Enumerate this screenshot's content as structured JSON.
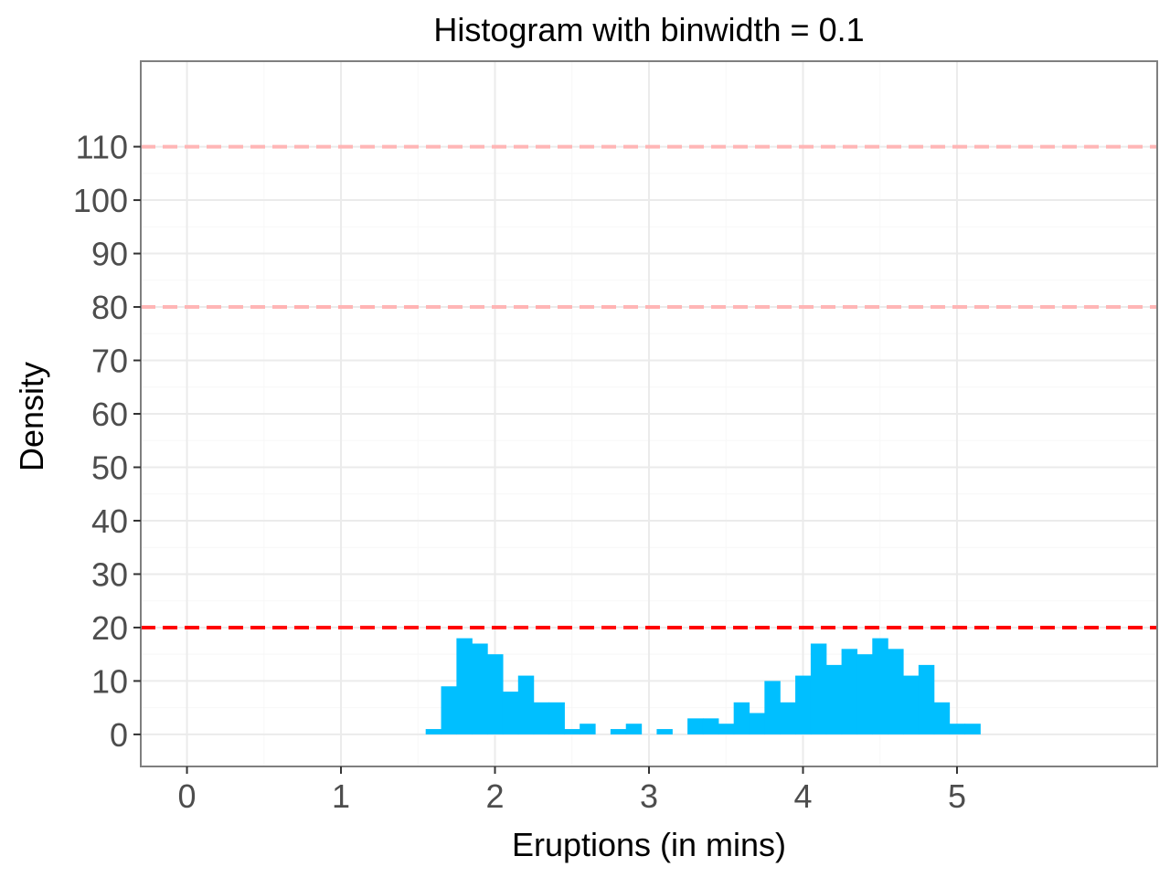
{
  "chart_data": {
    "type": "bar",
    "title": "Histogram with binwidth = 0.1",
    "xlabel": "Eruptions (in mins)",
    "ylabel": "Density",
    "xlim": [
      -0.3,
      6.3
    ],
    "ylim": [
      -6,
      126
    ],
    "x_ticks": [
      0,
      1,
      2,
      3,
      4,
      5
    ],
    "y_ticks": [
      0,
      10,
      20,
      30,
      40,
      50,
      60,
      70,
      80,
      90,
      100,
      110
    ],
    "grid": true,
    "binwidth": 0.1,
    "bins": [
      {
        "x0": 1.55,
        "x1": 1.65,
        "value": 1
      },
      {
        "x0": 1.65,
        "x1": 1.75,
        "value": 9
      },
      {
        "x0": 1.75,
        "x1": 1.85,
        "value": 18
      },
      {
        "x0": 1.85,
        "x1": 1.95,
        "value": 17
      },
      {
        "x0": 1.95,
        "x1": 2.05,
        "value": 15
      },
      {
        "x0": 2.05,
        "x1": 2.15,
        "value": 8
      },
      {
        "x0": 2.15,
        "x1": 2.25,
        "value": 11
      },
      {
        "x0": 2.25,
        "x1": 2.35,
        "value": 6
      },
      {
        "x0": 2.35,
        "x1": 2.45,
        "value": 6
      },
      {
        "x0": 2.45,
        "x1": 2.55,
        "value": 1
      },
      {
        "x0": 2.55,
        "x1": 2.65,
        "value": 2
      },
      {
        "x0": 2.65,
        "x1": 2.75,
        "value": 0
      },
      {
        "x0": 2.75,
        "x1": 2.85,
        "value": 1
      },
      {
        "x0": 2.85,
        "x1": 2.95,
        "value": 2
      },
      {
        "x0": 2.95,
        "x1": 3.05,
        "value": 0
      },
      {
        "x0": 3.05,
        "x1": 3.15,
        "value": 1
      },
      {
        "x0": 3.15,
        "x1": 3.25,
        "value": 0
      },
      {
        "x0": 3.25,
        "x1": 3.35,
        "value": 3
      },
      {
        "x0": 3.35,
        "x1": 3.45,
        "value": 3
      },
      {
        "x0": 3.45,
        "x1": 3.55,
        "value": 2
      },
      {
        "x0": 3.55,
        "x1": 3.65,
        "value": 6
      },
      {
        "x0": 3.65,
        "x1": 3.75,
        "value": 4
      },
      {
        "x0": 3.75,
        "x1": 3.85,
        "value": 10
      },
      {
        "x0": 3.85,
        "x1": 3.95,
        "value": 6
      },
      {
        "x0": 3.95,
        "x1": 4.05,
        "value": 11
      },
      {
        "x0": 4.05,
        "x1": 4.15,
        "value": 17
      },
      {
        "x0": 4.15,
        "x1": 4.25,
        "value": 13
      },
      {
        "x0": 4.25,
        "x1": 4.35,
        "value": 16
      },
      {
        "x0": 4.35,
        "x1": 4.45,
        "value": 15
      },
      {
        "x0": 4.45,
        "x1": 4.55,
        "value": 18
      },
      {
        "x0": 4.55,
        "x1": 4.65,
        "value": 16
      },
      {
        "x0": 4.65,
        "x1": 4.75,
        "value": 11
      },
      {
        "x0": 4.75,
        "x1": 4.85,
        "value": 13
      },
      {
        "x0": 4.85,
        "x1": 4.95,
        "value": 6
      },
      {
        "x0": 4.95,
        "x1": 5.05,
        "value": 2
      },
      {
        "x0": 5.05,
        "x1": 5.15,
        "value": 2
      }
    ],
    "reference_lines": [
      {
        "y": 20,
        "color": "#ff0000",
        "style": "dashed"
      },
      {
        "y": 80,
        "color": "#ffb6b6",
        "style": "dashed"
      },
      {
        "y": 110,
        "color": "#ffb6b6",
        "style": "dashed"
      }
    ],
    "colors": {
      "bar": "#00bfff",
      "panel_border": "#7f7f7f",
      "grid_major": "#ebebeb",
      "grid_minor": "#f7f7f7",
      "tick": "#333333"
    }
  }
}
